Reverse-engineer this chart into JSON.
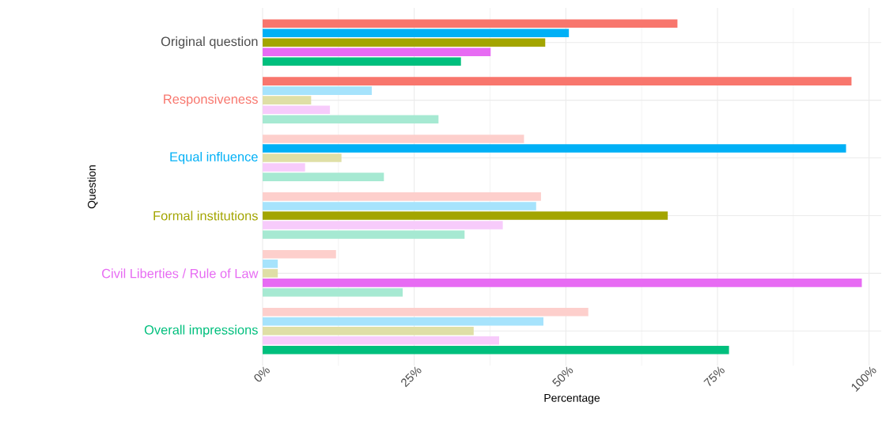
{
  "chart_data": {
    "type": "bar",
    "orientation": "horizontal",
    "xlabel": "Percentage",
    "ylabel": "Question",
    "categories": [
      "Original question",
      "Responsiveness",
      "Equal influence",
      "Formal institutions",
      "Civil Liberties / Rule of Law",
      "Overall impressions"
    ],
    "series": [
      {
        "color": "#F8766D",
        "colors": [
          "#F8766D",
          "#F8766D",
          "#FDCFCC",
          "#FDCFCC",
          "#FDCFCC",
          "#FDCFCC"
        ],
        "values": [
          68.4,
          97.1,
          43.1,
          45.9,
          12.1,
          53.7
        ]
      },
      {
        "color": "#00B0F6",
        "colors": [
          "#00B0F6",
          "#A6E3FC",
          "#00B0F6",
          "#A6E3FC",
          "#A6E3FC",
          "#A6E3FC"
        ],
        "values": [
          50.5,
          18.0,
          96.2,
          45.1,
          2.5,
          46.3
        ]
      },
      {
        "color": "#A3A500",
        "colors": [
          "#A3A500",
          "#DFDFA6",
          "#DFDFA6",
          "#A3A500",
          "#DFDFA6",
          "#DFDFA6"
        ],
        "values": [
          46.6,
          8.0,
          13.0,
          66.8,
          2.5,
          34.8
        ]
      },
      {
        "color": "#E76BF3",
        "colors": [
          "#E76BF3",
          "#F7CBFB",
          "#F7CBFB",
          "#F7CBFB",
          "#E76BF3",
          "#F7CBFB"
        ],
        "values": [
          37.6,
          11.1,
          7.0,
          39.6,
          98.8,
          39.0
        ]
      },
      {
        "color": "#00BF7D",
        "colors": [
          "#00BF7D",
          "#A6E9D2",
          "#A6E9D2",
          "#A6E9D2",
          "#A6E9D2",
          "#00BF7D"
        ],
        "values": [
          32.7,
          29.0,
          20.0,
          33.3,
          23.1,
          76.9
        ]
      }
    ],
    "xlim": [
      0,
      102
    ],
    "xticks": [
      {
        "value": 0,
        "label": "0%"
      },
      {
        "value": 25,
        "label": "25%"
      },
      {
        "value": 50,
        "label": "50%"
      },
      {
        "value": 75,
        "label": "75%"
      },
      {
        "value": 100,
        "label": "100%"
      }
    ],
    "grid": true
  }
}
